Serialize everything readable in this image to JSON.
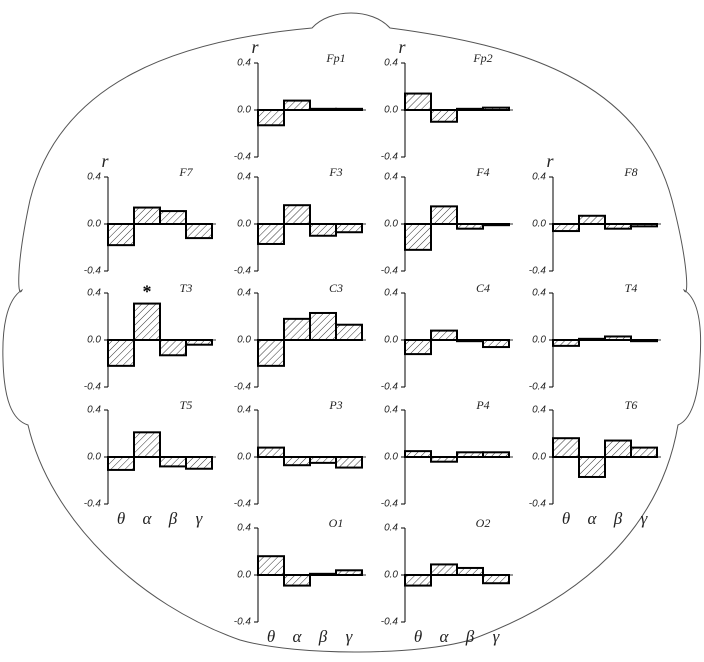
{
  "chart_data": [
    {
      "type": "bar",
      "title": "Fp1",
      "y_label": "r",
      "values": [
        -0.13,
        0.08,
        0.01,
        0.01
      ],
      "ylim": [
        -0.4,
        0.4
      ],
      "yticks": [
        0.4,
        {
          "value": 0,
          "label": "0.0"
        },
        -0.4
      ]
    },
    {
      "type": "bar",
      "title": "Fp2",
      "y_label": "r",
      "values": [
        0.14,
        -0.1,
        0.01,
        0.02
      ],
      "ylim": [
        -0.4,
        0.4
      ],
      "yticks": [
        0.4,
        {
          "value": 0,
          "label": "0.0"
        },
        -0.4
      ]
    },
    {
      "type": "bar",
      "title": "F7",
      "y_label": "r",
      "values": [
        -0.18,
        0.14,
        0.11,
        -0.12
      ],
      "ylim": [
        -0.4,
        0.4
      ],
      "yticks": [
        0.4,
        {
          "value": 0,
          "label": "0.0"
        },
        -0.4
      ]
    },
    {
      "type": "bar",
      "title": "F3",
      "values": [
        -0.17,
        0.16,
        -0.1,
        -0.07
      ],
      "ylim": [
        -0.4,
        0.4
      ],
      "yticks": [
        0.4,
        {
          "value": 0,
          "label": "0.0"
        },
        -0.4
      ]
    },
    {
      "type": "bar",
      "title": "F4",
      "values": [
        -0.22,
        0.15,
        -0.04,
        -0.01
      ],
      "ylim": [
        -0.4,
        0.4
      ],
      "yticks": [
        0.4,
        {
          "value": 0,
          "label": "0.0"
        },
        -0.4
      ]
    },
    {
      "type": "bar",
      "title": "F8",
      "y_label": "r",
      "values": [
        -0.06,
        0.07,
        -0.04,
        -0.02
      ],
      "ylim": [
        -0.4,
        0.4
      ],
      "yticks": [
        0.4,
        {
          "value": 0,
          "label": "0.0"
        },
        -0.4
      ]
    },
    {
      "type": "bar",
      "title": "T3",
      "annotation": "*",
      "values": [
        -0.22,
        0.31,
        -0.13,
        -0.04
      ],
      "ylim": [
        -0.4,
        0.4
      ],
      "yticks": [
        0.4,
        {
          "value": 0,
          "label": "0.0"
        },
        -0.4
      ]
    },
    {
      "type": "bar",
      "title": "C3",
      "values": [
        -0.22,
        0.18,
        0.23,
        0.13
      ],
      "ylim": [
        -0.4,
        0.4
      ],
      "yticks": [
        0.4,
        {
          "value": 0,
          "label": "0.0"
        },
        -0.4
      ]
    },
    {
      "type": "bar",
      "title": "C4",
      "values": [
        -0.12,
        0.08,
        -0.01,
        -0.06
      ],
      "ylim": [
        -0.4,
        0.4
      ],
      "yticks": [
        0.4,
        {
          "value": 0,
          "label": "0.0"
        },
        -0.4
      ]
    },
    {
      "type": "bar",
      "title": "T4",
      "values": [
        -0.05,
        0.01,
        0.03,
        -0.01
      ],
      "ylim": [
        -0.4,
        0.4
      ],
      "yticks": [
        0.4,
        {
          "value": 0,
          "label": "0.0"
        },
        -0.4
      ]
    },
    {
      "type": "bar",
      "title": "T5",
      "categories": [
        "θ",
        "α",
        "β",
        "γ"
      ],
      "values": [
        -0.11,
        0.21,
        -0.08,
        -0.1
      ],
      "ylim": [
        -0.4,
        0.4
      ],
      "yticks": [
        0.4,
        {
          "value": 0,
          "label": "0.0"
        },
        -0.4
      ]
    },
    {
      "type": "bar",
      "title": "P3",
      "values": [
        0.08,
        -0.07,
        -0.05,
        -0.09
      ],
      "ylim": [
        -0.4,
        0.4
      ],
      "yticks": [
        0.4,
        {
          "value": 0,
          "label": "0.0"
        },
        -0.4
      ]
    },
    {
      "type": "bar",
      "title": "P4",
      "values": [
        0.05,
        -0.04,
        0.04,
        0.04
      ],
      "ylim": [
        -0.4,
        0.4
      ],
      "yticks": [
        0.4,
        {
          "value": 0,
          "label": "0.0"
        },
        -0.4
      ]
    },
    {
      "type": "bar",
      "title": "T6",
      "categories": [
        "θ",
        "α",
        "β",
        "γ"
      ],
      "values": [
        0.16,
        -0.17,
        0.14,
        0.08
      ],
      "ylim": [
        -0.4,
        0.4
      ],
      "yticks": [
        0.4,
        {
          "value": 0,
          "label": "0.0"
        },
        -0.4
      ]
    },
    {
      "type": "bar",
      "title": "O1",
      "categories": [
        "θ",
        "α",
        "β",
        "γ"
      ],
      "values": [
        0.16,
        -0.09,
        0.01,
        0.04
      ],
      "ylim": [
        -0.4,
        0.4
      ],
      "yticks": [
        0.4,
        {
          "value": 0,
          "label": "0.0"
        },
        -0.4
      ]
    },
    {
      "type": "bar",
      "title": "O2",
      "categories": [
        "θ",
        "α",
        "β",
        "γ"
      ],
      "values": [
        -0.09,
        0.09,
        0.06,
        -0.07
      ],
      "ylim": [
        -0.4,
        0.4
      ],
      "yticks": [
        0.4,
        {
          "value": 0,
          "label": "0.0"
        },
        -0.4
      ]
    }
  ]
}
